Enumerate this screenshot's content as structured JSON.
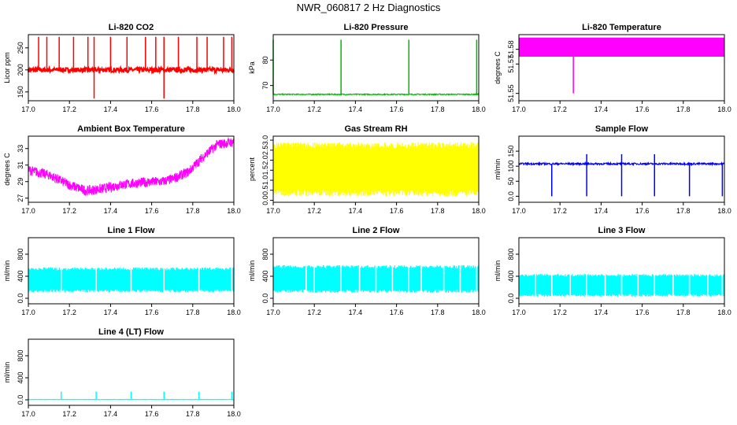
{
  "title": "NWR_060817  2 Hz Diagnostics",
  "chart_data": [
    {
      "id": "co2",
      "type": "line",
      "title": "Li-820 CO2",
      "ylabel": "Licor ppm",
      "color": "#ff0000",
      "xlim": [
        17.0,
        18.0
      ],
      "ylim": [
        130,
        280
      ],
      "yticks": [
        150,
        200,
        250
      ],
      "xticks": [
        17.0,
        17.2,
        17.4,
        17.6,
        17.8,
        18.0
      ],
      "baseline": 200,
      "noise": 5,
      "spikes": [
        17.05,
        17.09,
        17.15,
        17.22,
        17.29,
        17.32,
        17.4,
        17.48,
        17.57,
        17.62,
        17.66,
        17.73,
        17.82,
        17.87,
        17.95,
        17.99
      ],
      "spike_top": 275,
      "dips": [
        17.32,
        17.66
      ],
      "dip_bottom": 135
    },
    {
      "id": "pressure",
      "type": "line",
      "title": "Li-820 Pressure",
      "ylabel": "kPa",
      "color": "#00bb00",
      "xlim": [
        17.0,
        18.0
      ],
      "ylim": [
        64,
        90
      ],
      "yticks": [
        70,
        80
      ],
      "xticks": [
        17.0,
        17.2,
        17.4,
        17.6,
        17.8,
        18.0
      ],
      "baseline": 66.5,
      "noise": 0.2,
      "spikes": [
        17.0,
        17.33,
        17.66,
        17.99
      ],
      "spike_top": 88
    },
    {
      "id": "temp",
      "type": "area",
      "title": "Li-820 Temperature",
      "ylabel": "degrees C",
      "color": "#ff00ff",
      "xlim": [
        17.0,
        18.0
      ],
      "ylim": [
        51.545,
        51.59
      ],
      "yticks": [
        51.55,
        51.57,
        51.58
      ],
      "xticks": [
        17.0,
        17.2,
        17.4,
        17.6,
        17.8,
        18.0
      ],
      "band": [
        51.575,
        51.588
      ],
      "dip_x": 17.265,
      "dip_bottom": 51.55
    },
    {
      "id": "ambient",
      "type": "line",
      "title": "Ambient Box Temperature",
      "ylabel": "degrees C",
      "color": "#ff00ff",
      "xlim": [
        17.0,
        18.0
      ],
      "ylim": [
        26.5,
        34.5
      ],
      "yticks": [
        27,
        29,
        31,
        33
      ],
      "xticks": [
        17.0,
        17.2,
        17.4,
        17.6,
        17.8,
        18.0
      ],
      "points": [
        [
          17.0,
          30.4
        ],
        [
          17.1,
          29.8
        ],
        [
          17.2,
          28.6
        ],
        [
          17.28,
          27.9
        ],
        [
          17.35,
          28.1
        ],
        [
          17.45,
          28.6
        ],
        [
          17.55,
          28.9
        ],
        [
          17.65,
          29.0
        ],
        [
          17.7,
          29.3
        ],
        [
          17.78,
          30.2
        ],
        [
          17.85,
          32.0
        ],
        [
          17.92,
          33.5
        ],
        [
          18.0,
          33.8
        ]
      ],
      "noise": 0.6
    },
    {
      "id": "rh",
      "type": "area",
      "title": "Gas Stream RH",
      "ylabel": "percent",
      "color": "#ffff00",
      "xlim": [
        17.0,
        18.0
      ],
      "ylim": [
        -0.1,
        3.2
      ],
      "yticks": [
        0.0,
        0.5,
        1.0,
        1.5,
        2.0,
        2.5,
        3.0
      ],
      "xticks": [
        17.0,
        17.2,
        17.4,
        17.6,
        17.8,
        18.0
      ],
      "band": [
        0.2,
        2.9
      ]
    },
    {
      "id": "sample",
      "type": "line",
      "title": "Sample Flow",
      "ylabel": "ml/min",
      "color": "#0000ff",
      "xlim": [
        17.0,
        18.0
      ],
      "ylim": [
        -20,
        200
      ],
      "yticks": [
        0,
        50,
        100,
        150
      ],
      "xticks": [
        17.0,
        17.2,
        17.4,
        17.6,
        17.8,
        18.0
      ],
      "baseline": 108,
      "noise": 3,
      "dips": [
        17.16,
        17.33,
        17.5,
        17.66,
        17.83,
        17.99
      ],
      "dip_bottom": 0,
      "spikes": [
        17.33,
        17.5,
        17.66
      ],
      "spike_top": 140
    },
    {
      "id": "line1",
      "type": "area",
      "title": "Line 1 Flow",
      "ylabel": "ml/min",
      "color": "#00ffff",
      "xlim": [
        17.0,
        18.0
      ],
      "ylim": [
        -100,
        1100
      ],
      "yticks": [
        0,
        400,
        800
      ],
      "xticks": [
        17.0,
        17.2,
        17.4,
        17.6,
        17.8,
        18.0
      ],
      "band": [
        110,
        560
      ],
      "gaps": [
        17.16,
        17.33,
        17.5,
        17.66,
        17.83,
        17.99
      ]
    },
    {
      "id": "line2",
      "type": "area",
      "title": "Line 2 Flow",
      "ylabel": "ml/min",
      "color": "#00ffff",
      "xlim": [
        17.0,
        18.0
      ],
      "ylim": [
        -100,
        1100
      ],
      "yticks": [
        0,
        400,
        800
      ],
      "xticks": [
        17.0,
        17.2,
        17.4,
        17.6,
        17.8,
        18.0
      ],
      "band": [
        100,
        600
      ],
      "gaps": [
        17.16,
        17.2,
        17.33,
        17.42,
        17.5,
        17.58,
        17.66,
        17.72,
        17.83,
        17.91,
        17.99
      ]
    },
    {
      "id": "line3",
      "type": "area",
      "title": "Line 3 Flow",
      "ylabel": "ml/min",
      "color": "#00ffff",
      "xlim": [
        17.0,
        18.0
      ],
      "ylim": [
        -100,
        1100
      ],
      "yticks": [
        0,
        400,
        800
      ],
      "xticks": [
        17.0,
        17.2,
        17.4,
        17.6,
        17.8,
        18.0
      ],
      "band": [
        30,
        440
      ],
      "gaps": [
        17.08,
        17.16,
        17.25,
        17.33,
        17.42,
        17.5,
        17.58,
        17.66,
        17.75,
        17.83,
        17.92,
        17.99
      ]
    },
    {
      "id": "line4",
      "type": "line",
      "title": "Line 4 (LT) Flow",
      "ylabel": "ml/min",
      "color": "#00ffff",
      "xlim": [
        17.0,
        18.0
      ],
      "ylim": [
        -100,
        1100
      ],
      "yticks": [
        0,
        400,
        800
      ],
      "xticks": [
        17.0,
        17.2,
        17.4,
        17.6,
        17.8,
        18.0
      ],
      "baseline": 5,
      "noise": 3,
      "spikes": [
        17.16,
        17.33,
        17.5,
        17.66,
        17.83,
        17.99
      ],
      "spike_top": 150
    }
  ]
}
